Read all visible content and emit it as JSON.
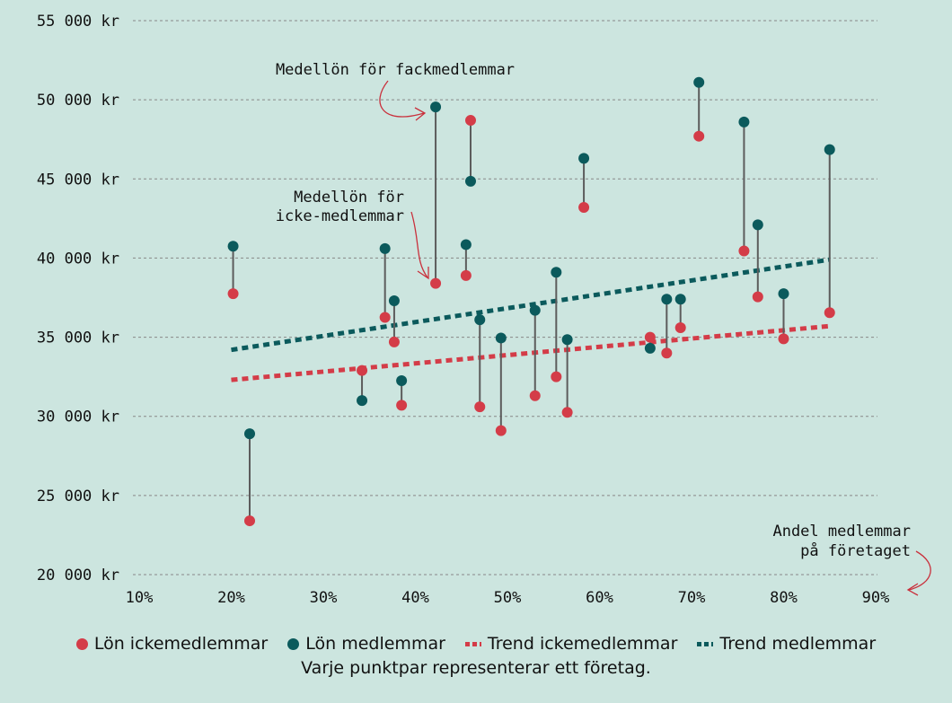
{
  "colors": {
    "background": "#cce5df",
    "nonmember": "#d43c48",
    "member": "#0b5a5c",
    "connector": "#5c5c5c",
    "grid": "#888888",
    "annotation_arrow": "#c9303c"
  },
  "chart_data": {
    "type": "scatter",
    "x_unit": "%",
    "y_unit": "kr",
    "xlim": [
      10,
      90
    ],
    "ylim": [
      20000,
      55000
    ],
    "x_ticks": [
      "10%",
      "20%",
      "30%",
      "40%",
      "50%",
      "60%",
      "70%",
      "80%",
      "90%"
    ],
    "y_ticks": [
      "20 000 kr",
      "25 000 kr",
      "30 000 kr",
      "35 000 kr",
      "40 000 kr",
      "45 000 kr",
      "50 000 kr",
      "55 000 kr"
    ],
    "grid": "horizontal dashed",
    "pairs": [
      {
        "x": 20.2,
        "nonmember": 37750,
        "member": 40750
      },
      {
        "x": 22.0,
        "nonmember": 23400,
        "member": 28900
      },
      {
        "x": 34.2,
        "nonmember": 32900,
        "member": 31000
      },
      {
        "x": 36.7,
        "nonmember": 36250,
        "member": 40600
      },
      {
        "x": 37.7,
        "nonmember": 34700,
        "member": 37300
      },
      {
        "x": 38.5,
        "nonmember": 30700,
        "member": 32250
      },
      {
        "x": 42.2,
        "nonmember": 38400,
        "member": 49550
      },
      {
        "x": 45.5,
        "nonmember": 38900,
        "member": 40850
      },
      {
        "x": 46.0,
        "nonmember": 48700,
        "member": 44850
      },
      {
        "x": 47.0,
        "nonmember": 30600,
        "member": 36100
      },
      {
        "x": 49.3,
        "nonmember": 29100,
        "member": 34950
      },
      {
        "x": 53.0,
        "nonmember": 31300,
        "member": 36700
      },
      {
        "x": 55.3,
        "nonmember": 32500,
        "member": 39100
      },
      {
        "x": 56.5,
        "nonmember": 30250,
        "member": 34850
      },
      {
        "x": 58.3,
        "nonmember": 43200,
        "member": 46300
      },
      {
        "x": 65.5,
        "nonmember": 35000,
        "member": 34300
      },
      {
        "x": 67.3,
        "nonmember": 34000,
        "member": 37400
      },
      {
        "x": 68.8,
        "nonmember": 35600,
        "member": 37400
      },
      {
        "x": 70.8,
        "nonmember": 47700,
        "member": 51100
      },
      {
        "x": 75.7,
        "nonmember": 40450,
        "member": 48600
      },
      {
        "x": 77.2,
        "nonmember": 37550,
        "member": 42100
      },
      {
        "x": 80.0,
        "nonmember": 34900,
        "member": 37750
      },
      {
        "x": 85.0,
        "nonmember": 36550,
        "member": 46850
      }
    ],
    "trend_nonmember": {
      "x": [
        20,
        85
      ],
      "y": [
        32300,
        35700
      ]
    },
    "trend_member": {
      "x": [
        20,
        85
      ],
      "y": [
        34200,
        39900
      ]
    },
    "annotations": [
      {
        "lines": [
          "Medellön för fackmedlemmar"
        ]
      },
      {
        "lines": [
          "Medellön för",
          "icke-medlemmar"
        ]
      },
      {
        "lines": [
          "Andel medlemmar",
          "på företaget"
        ]
      }
    ]
  },
  "legend": [
    {
      "label": "Lön ickemedlemmar",
      "marker": "dot",
      "color_key": "nonmember"
    },
    {
      "label": "Lön medlemmar",
      "marker": "dot",
      "color_key": "member"
    },
    {
      "label": "Trend ickemedlemmar",
      "marker": "dash",
      "color_key": "nonmember"
    },
    {
      "label": "Trend medlemmar",
      "marker": "dash",
      "color_key": "member"
    }
  ],
  "note": "Varje punktpar representerar ett företag."
}
